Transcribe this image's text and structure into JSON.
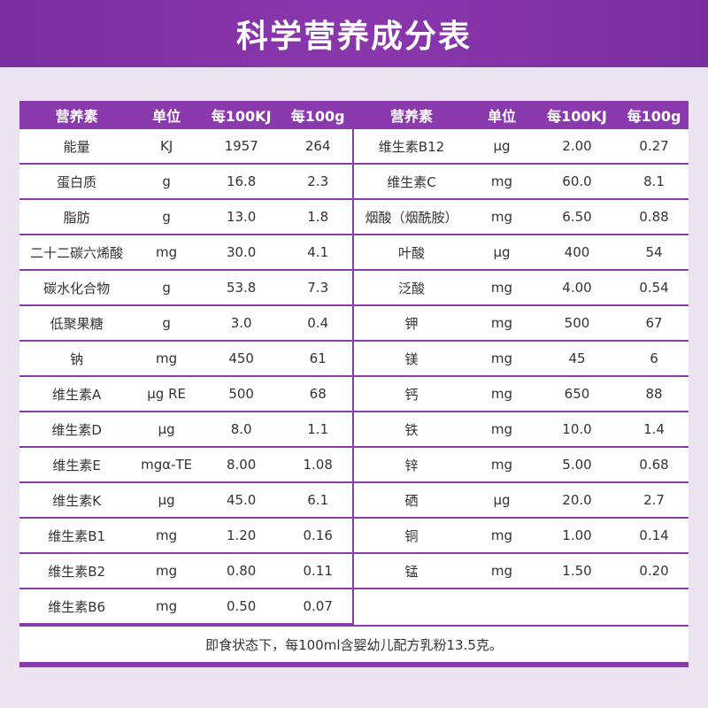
{
  "title": "科学营养成分表",
  "headers": [
    "营养素",
    "单位",
    "每100KJ",
    "每100g"
  ],
  "left_rows": [
    [
      "能量",
      "KJ",
      "1957",
      "264"
    ],
    [
      "蛋白质",
      "g",
      "16.8",
      "2.3"
    ],
    [
      "脂肪",
      "g",
      "13.0",
      "1.8"
    ],
    [
      "二十二碳六烯酸",
      "mg",
      "30.0",
      "4.1"
    ],
    [
      "碳水化合物",
      "g",
      "53.8",
      "7.3"
    ],
    [
      "低聚果糖",
      "g",
      "3.0",
      "0.4"
    ],
    [
      "钠",
      "mg",
      "450",
      "61"
    ],
    [
      "维生素A",
      "μg RE",
      "500",
      "68"
    ],
    [
      "维生素D",
      "μg",
      "8.0",
      "1.1"
    ],
    [
      "维生素E",
      "mgα-TE",
      "8.00",
      "1.08"
    ],
    [
      "维生素K",
      "μg",
      "45.0",
      "6.1"
    ],
    [
      "维生素B1",
      "mg",
      "1.20",
      "0.16"
    ],
    [
      "维生素B2",
      "mg",
      "0.80",
      "0.11"
    ],
    [
      "维生素B6",
      "mg",
      "0.50",
      "0.07"
    ]
  ],
  "right_rows": [
    [
      "维生素B12",
      "μg",
      "2.00",
      "0.27"
    ],
    [
      "维生素C",
      "mg",
      "60.0",
      "8.1"
    ],
    [
      "烟酸（烟酰胺）",
      "mg",
      "6.50",
      "0.88"
    ],
    [
      "叶酸",
      "μg",
      "400",
      "54"
    ],
    [
      "泛酸",
      "mg",
      "4.00",
      "0.54"
    ],
    [
      "钾",
      "mg",
      "500",
      "67"
    ],
    [
      "镁",
      "mg",
      "45",
      "6"
    ],
    [
      "钙",
      "mg",
      "650",
      "88"
    ],
    [
      "铁",
      "mg",
      "10.0",
      "1.4"
    ],
    [
      "锌",
      "mg",
      "5.00",
      "0.68"
    ],
    [
      "硒",
      "μg",
      "20.0",
      "2.7"
    ],
    [
      "铜",
      "mg",
      "1.00",
      "0.14"
    ],
    [
      "锰",
      "mg",
      "1.50",
      "0.20"
    ]
  ],
  "footnote": "即食状态下，每100ml含婴幼儿配方乳粉13.5克。"
}
